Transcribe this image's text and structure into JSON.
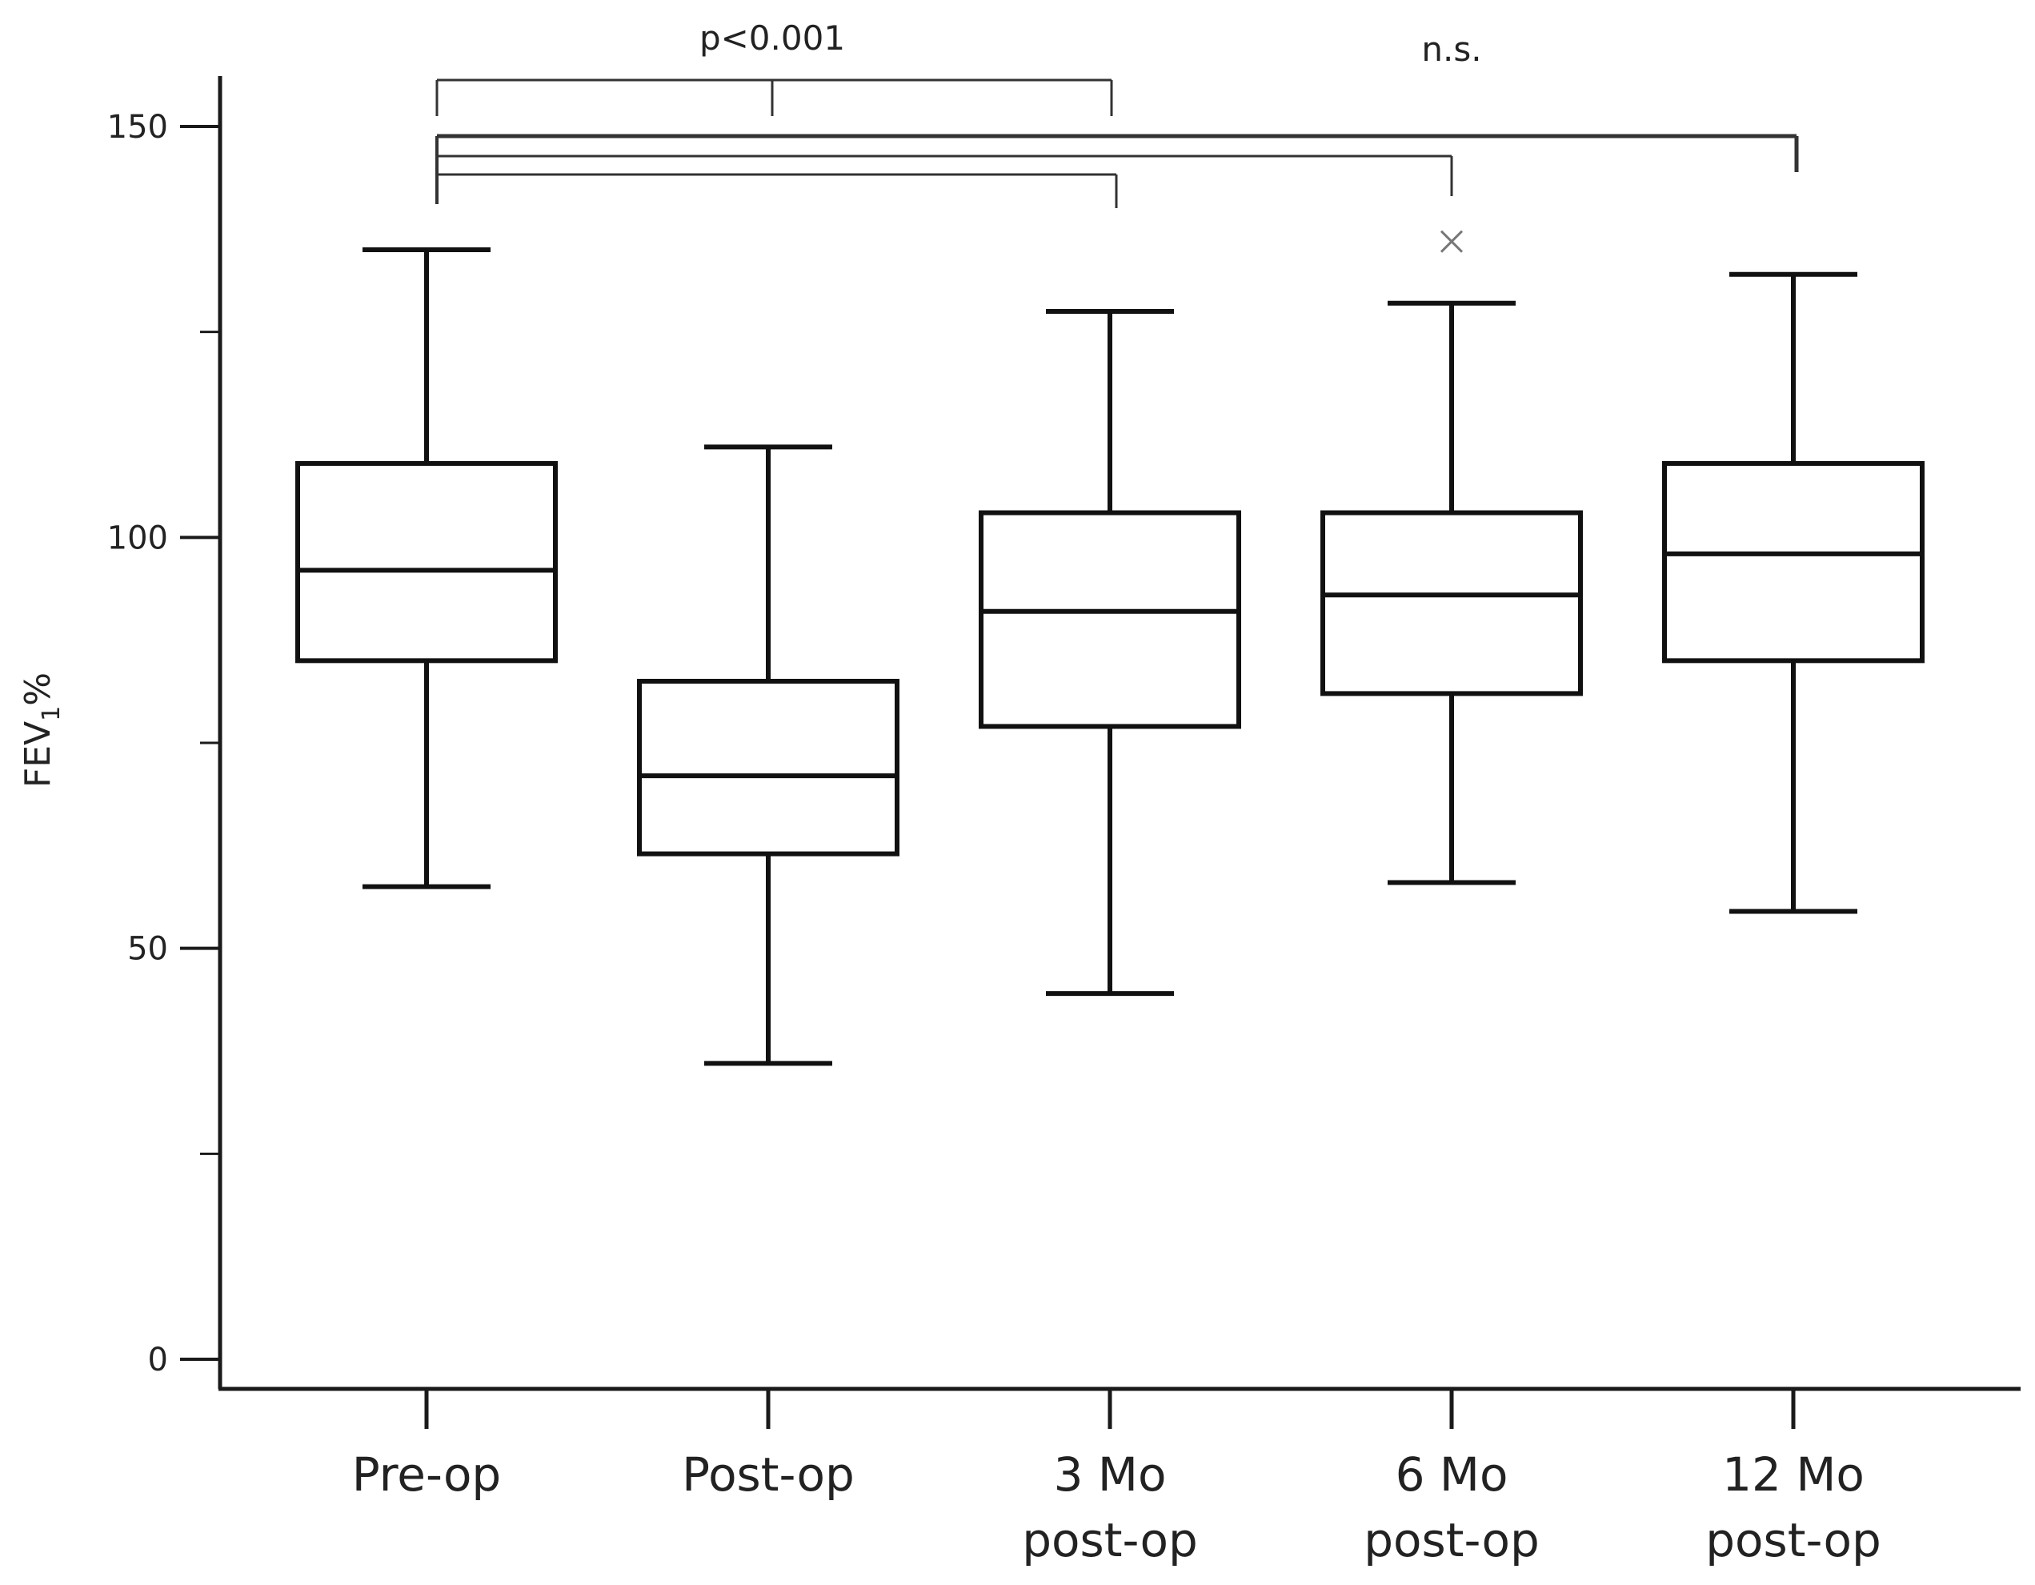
{
  "chart_data": {
    "type": "box",
    "title": "",
    "xlabel": "",
    "ylabel": {
      "main": "FEV",
      "subscript": "1",
      "suffix": "%"
    },
    "ylim": [
      -8,
      165
    ],
    "yticks_labeled": [
      0,
      50,
      100,
      150
    ],
    "yticks_minor": [
      25,
      75,
      125
    ],
    "grid": false,
    "categories": [
      {
        "lines": [
          "Pre-op"
        ]
      },
      {
        "lines": [
          "Post-op"
        ]
      },
      {
        "lines": [
          "3 Mo",
          "post-op"
        ]
      },
      {
        "lines": [
          "6 Mo",
          "post-op"
        ]
      },
      {
        "lines": [
          "12 Mo",
          "post-op"
        ]
      }
    ],
    "boxes": [
      {
        "min": 57.5,
        "q1": 85,
        "median": 96,
        "q3": 109,
        "max": 135,
        "outliers": []
      },
      {
        "min": 36,
        "q1": 61.5,
        "median": 71,
        "q3": 82.5,
        "max": 111,
        "outliers": []
      },
      {
        "min": 44.5,
        "q1": 77,
        "median": 91,
        "q3": 103,
        "max": 127.5,
        "outliers": []
      },
      {
        "min": 58,
        "q1": 81,
        "median": 93,
        "q3": 103,
        "max": 128.5,
        "outliers": [
          136
        ]
      },
      {
        "min": 54.5,
        "q1": 85,
        "median": 98,
        "q3": 109,
        "max": 132,
        "outliers": []
      }
    ],
    "significance": [
      {
        "label": "p<0.001",
        "comparisons": [
          [
            0,
            1
          ],
          [
            1,
            2
          ]
        ]
      },
      {
        "label": "n.s.",
        "comparisons": [
          [
            0,
            2
          ],
          [
            0,
            3
          ],
          [
            0,
            4
          ]
        ]
      }
    ],
    "colors": {
      "axis": "#1a1a1a",
      "box": "#111111",
      "bracket": "#333333",
      "outlier": "#777777"
    }
  }
}
